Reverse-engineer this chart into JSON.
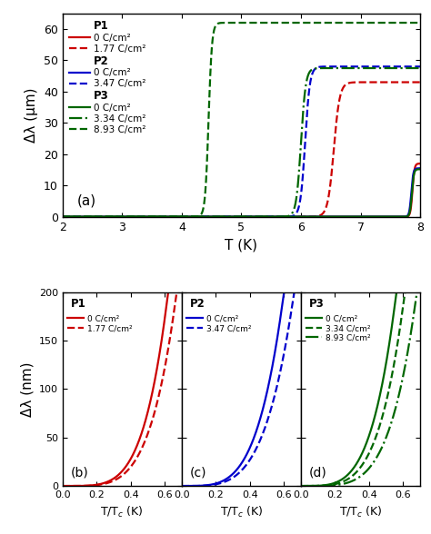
{
  "top_panel": {
    "xlabel": "T (K)",
    "ylabel": "Δλ (μm)",
    "label": "(a)",
    "xlim": [
      2,
      8
    ],
    "ylim": [
      0,
      65
    ],
    "yticks": [
      0,
      10,
      20,
      30,
      40,
      50,
      60
    ],
    "xticks": [
      2,
      3,
      4,
      5,
      6,
      7,
      8
    ]
  },
  "bottom_panels": [
    {
      "label": "(b)",
      "panel_label": "P1",
      "xlabel": "T/T$_c$ (K)",
      "xlim": [
        0,
        0.7
      ],
      "ylim": [
        0,
        200
      ],
      "yticks": [
        0,
        50,
        100,
        150,
        200
      ],
      "xticks": [
        0.0,
        0.2,
        0.4,
        0.6
      ],
      "color": "#cc0000",
      "lines": [
        {
          "ls": "solid",
          "label": "0 C/cm²"
        },
        {
          "ls": "dashed",
          "label": "1.77 C/cm²"
        }
      ]
    },
    {
      "label": "(c)",
      "panel_label": "P2",
      "xlabel": "T/T$_c$ (K)",
      "xlim": [
        0,
        0.7
      ],
      "ylim": [
        0,
        200
      ],
      "yticks": [
        0,
        50,
        100,
        150,
        200
      ],
      "xticks": [
        0.0,
        0.2,
        0.4,
        0.6
      ],
      "color": "#0000cc",
      "lines": [
        {
          "ls": "solid",
          "label": "0 C/cm²"
        },
        {
          "ls": "dashed",
          "label": "3.47 C/cm²"
        }
      ]
    },
    {
      "label": "(d)",
      "panel_label": "P3",
      "xlabel": "T/T$_c$ (K)",
      "xlim": [
        0,
        0.7
      ],
      "ylim": [
        0,
        200
      ],
      "yticks": [
        0,
        50,
        100,
        150,
        200
      ],
      "xticks": [
        0.0,
        0.2,
        0.4,
        0.6
      ],
      "color": "#006600",
      "lines": [
        {
          "ls": "solid",
          "label": "0 C/cm²"
        },
        {
          "ls": "dashed",
          "label": "3.34 C/cm²"
        },
        {
          "ls": "dashdot",
          "label": "8.93 C/cm²"
        }
      ]
    }
  ],
  "bottom_ylabel": "Δλ (nm)",
  "colors": {
    "red": "#cc0000",
    "blue": "#0000cc",
    "green": "#006600"
  }
}
